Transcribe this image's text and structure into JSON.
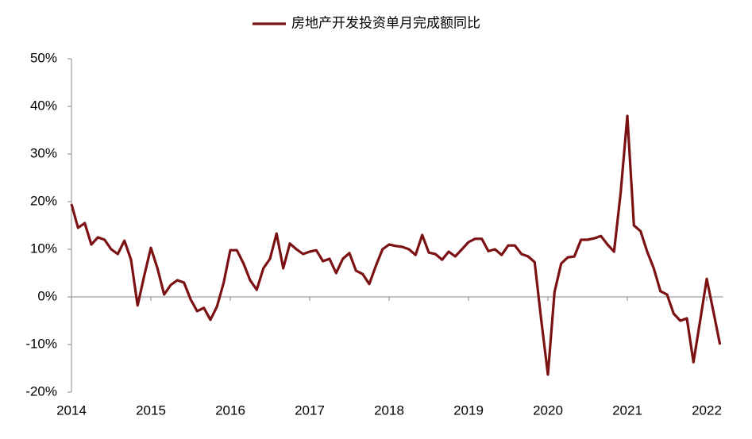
{
  "chart_data": {
    "type": "line",
    "categories": [
      "2014",
      null,
      null,
      null,
      null,
      null,
      null,
      null,
      null,
      null,
      null,
      null,
      "2015",
      null,
      null,
      null,
      null,
      null,
      null,
      null,
      null,
      null,
      null,
      null,
      "2016",
      null,
      null,
      null,
      null,
      null,
      null,
      null,
      null,
      null,
      null,
      null,
      "2017",
      null,
      null,
      null,
      null,
      null,
      null,
      null,
      null,
      null,
      null,
      null,
      "2018",
      null,
      null,
      null,
      null,
      null,
      null,
      null,
      null,
      null,
      null,
      null,
      "2019",
      null,
      null,
      null,
      null,
      null,
      null,
      null,
      null,
      null,
      null,
      null,
      "2020",
      null,
      null,
      null,
      null,
      null,
      null,
      null,
      null,
      null,
      null,
      null,
      "2021",
      null,
      null,
      null,
      null,
      null,
      null,
      null,
      null,
      null,
      null,
      null,
      "2022",
      null,
      null
    ],
    "series": [
      {
        "name": "房地产开发投资单月完成额同比",
        "color": "#7b1113",
        "values": [
          19.5,
          14.5,
          15.5,
          11,
          12.5,
          12,
          10,
          9,
          11.8,
          7.8,
          -1.8,
          4.5,
          10.3,
          6,
          0.5,
          2.5,
          3.5,
          3,
          -0.5,
          -3,
          -2.3,
          -4.8,
          -2,
          3,
          9.8,
          9.8,
          7,
          3.5,
          1.5,
          6,
          8,
          13.3,
          6,
          11.2,
          10,
          9,
          9.5,
          9.8,
          7.5,
          8,
          5,
          8,
          9.2,
          5.5,
          4.8,
          2.7,
          6.5,
          10,
          11,
          10.7,
          10.5,
          10,
          8.8,
          13,
          9.3,
          9,
          7.8,
          9.5,
          8.5,
          10,
          11.5,
          12.2,
          12.2,
          9.6,
          10,
          8.8,
          10.8,
          10.8,
          9,
          8.5,
          7.3,
          -5,
          -16.3,
          1,
          7,
          8.3,
          8.5,
          12,
          12,
          12.3,
          12.8,
          11,
          9.5,
          22,
          38,
          15,
          13.8,
          9.5,
          6,
          1.2,
          0.5,
          -3.5,
          -5,
          -4.5,
          -13.7,
          -5,
          3.8,
          -3,
          -10
        ]
      }
    ],
    "ylim": [
      -20,
      50
    ],
    "yticks": [
      {
        "value": -20,
        "label": "-20%"
      },
      {
        "value": -10,
        "label": "-10%"
      },
      {
        "value": 0,
        "label": "0%"
      },
      {
        "value": 10,
        "label": "10%"
      },
      {
        "value": 20,
        "label": "20%"
      },
      {
        "value": 30,
        "label": "30%"
      },
      {
        "value": 40,
        "label": "40%"
      },
      {
        "value": 50,
        "label": "50%"
      }
    ],
    "legend": "top"
  }
}
